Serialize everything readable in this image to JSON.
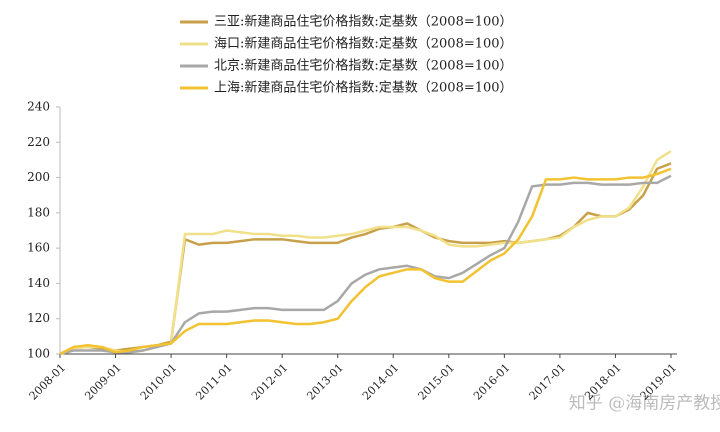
{
  "chart_data": {
    "type": "line",
    "categories": [
      "2008-01",
      null,
      null,
      null,
      "2009-01",
      null,
      null,
      null,
      "2010-01",
      null,
      null,
      null,
      "2011-01",
      null,
      null,
      null,
      "2012-01",
      null,
      null,
      null,
      "2013-01",
      null,
      null,
      null,
      "2014-01",
      null,
      null,
      null,
      "2015-01",
      null,
      null,
      null,
      "2016-01",
      null,
      null,
      null,
      "2017-01",
      null,
      null,
      null,
      "2018-01",
      null,
      null,
      null,
      "2019-01"
    ],
    "series": [
      {
        "name": "三亚:新建商品住宅价格指数:定基数（2008=100）",
        "color": "#c9a04a",
        "values": [
          100,
          104,
          104,
          103,
          102,
          103,
          104,
          105,
          107,
          165,
          162,
          163,
          163,
          164,
          165,
          165,
          165,
          164,
          163,
          163,
          163,
          166,
          168,
          171,
          172,
          174,
          170,
          166,
          164,
          163,
          163,
          163,
          164,
          163,
          164,
          165,
          167,
          172,
          180,
          178,
          178,
          182,
          190,
          205,
          208
        ]
      },
      {
        "name": "海口:新建商品住宅价格指数:定基数（2008=100）",
        "color": "#f0e08a",
        "values": [
          100,
          103,
          104,
          104,
          102,
          101,
          102,
          104,
          106,
          168,
          168,
          168,
          170,
          169,
          168,
          168,
          167,
          167,
          166,
          166,
          167,
          168,
          170,
          172,
          172,
          172,
          170,
          167,
          162,
          161,
          161,
          162,
          163,
          163,
          164,
          165,
          166,
          172,
          176,
          178,
          178,
          183,
          195,
          210,
          215
        ]
      },
      {
        "name": "北京:新建商品住宅价格指数:定基数（2008=100）",
        "color": "#a8a8a8",
        "values": [
          100,
          102,
          102,
          102,
          101,
          101,
          102,
          104,
          106,
          118,
          123,
          124,
          124,
          125,
          126,
          126,
          125,
          125,
          125,
          125,
          130,
          140,
          145,
          148,
          149,
          150,
          148,
          144,
          143,
          146,
          151,
          156,
          160,
          175,
          195,
          196,
          196,
          197,
          197,
          196,
          196,
          196,
          197,
          197,
          201
        ]
      },
      {
        "name": "上海:新建商品住宅价格指数:定基数（2008=100）",
        "color": "#f2c230",
        "values": [
          100,
          104,
          105,
          104,
          101,
          102,
          104,
          105,
          106,
          113,
          117,
          117,
          117,
          118,
          119,
          119,
          118,
          117,
          117,
          118,
          120,
          130,
          138,
          144,
          146,
          148,
          148,
          143,
          141,
          141,
          147,
          153,
          157,
          165,
          178,
          199,
          199,
          200,
          199,
          199,
          199,
          200,
          200,
          202,
          205
        ]
      }
    ],
    "ylim": [
      100,
      240
    ],
    "yticks": [
      100,
      120,
      140,
      160,
      180,
      200,
      220,
      240
    ],
    "grid": false,
    "legend": "top",
    "watermark": "知乎 @海南房产教授"
  }
}
